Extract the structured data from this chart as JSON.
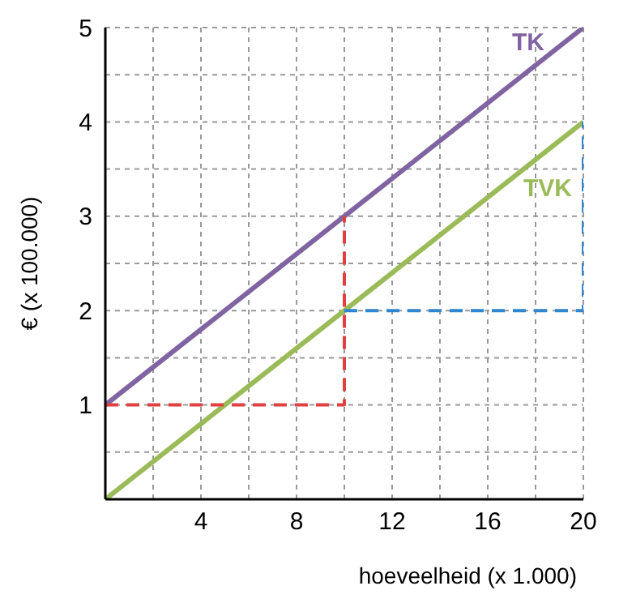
{
  "chart_data": {
    "type": "line",
    "xlabel": "hoeveelheid (x 1.000)",
    "ylabel": "€ (x 100.000)",
    "xlim": [
      0,
      20
    ],
    "ylim": [
      0,
      5
    ],
    "xticks": [
      {
        "value": 0,
        "label": null
      },
      {
        "value": 2,
        "label": null
      },
      4,
      {
        "value": 6,
        "label": null
      },
      8,
      {
        "value": 10,
        "label": null
      },
      12,
      {
        "value": 14,
        "label": null
      },
      16,
      {
        "value": 18,
        "label": null
      },
      20
    ],
    "yticks": [
      {
        "value": 0,
        "label": null
      },
      {
        "value": 0.5,
        "label": null
      },
      1,
      {
        "value": 1.5,
        "label": null
      },
      2,
      {
        "value": 2.5,
        "label": null
      },
      3,
      {
        "value": 3.5,
        "label": null
      },
      4,
      {
        "value": 4.5,
        "label": null
      },
      5
    ],
    "grid": true,
    "legend": false,
    "marker": "none",
    "line_style": "solid",
    "series": [
      {
        "name": "TK",
        "color": "#8064a2",
        "x": [
          0,
          20
        ],
        "values": [
          1,
          5
        ]
      },
      {
        "name": "TVK",
        "color": "#9bbb59",
        "x": [
          0,
          20
        ],
        "values": [
          0,
          4
        ]
      },
      {
        "color": "#e04040",
        "x": [
          0,
          10,
          10
        ],
        "values": [
          1,
          1,
          3
        ],
        "line_style": "dashed"
      },
      {
        "color": "#2e86d0",
        "x": [
          10,
          20,
          20
        ],
        "values": [
          2,
          2,
          4
        ],
        "line_style": "dashed"
      }
    ]
  }
}
